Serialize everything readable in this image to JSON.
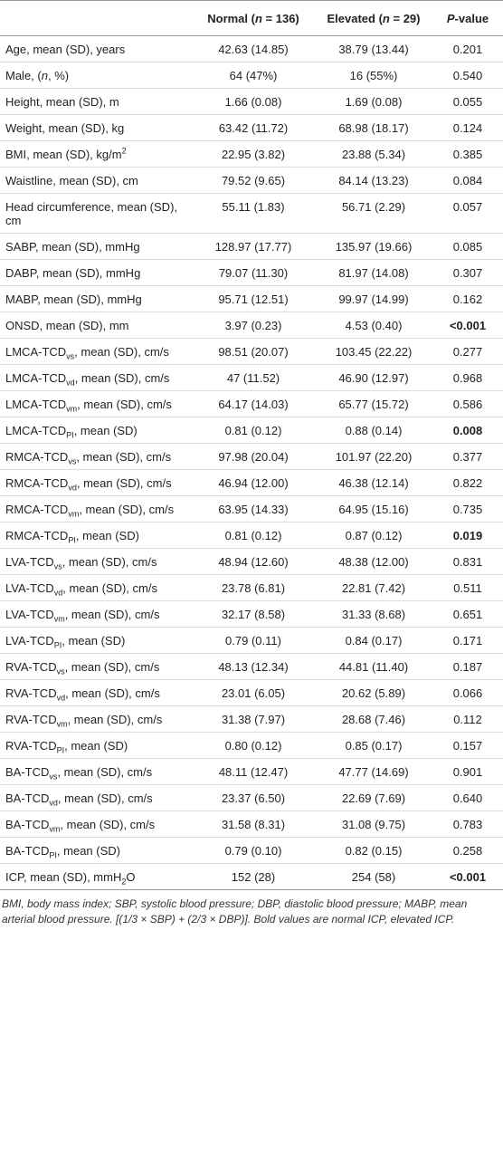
{
  "table": {
    "header": [
      [
        "",
        "Normal (",
        {
          "i": "n"
        },
        " = 136)"
      ],
      [
        "Elevated (",
        {
          "i": "n"
        },
        " = 29)"
      ],
      [
        {
          "i": "P"
        },
        "-value"
      ]
    ],
    "rows": [
      {
        "label": [
          "Age, mean (SD), years"
        ],
        "normal": "42.63 (14.85)",
        "elevated": "38.79 (13.44)",
        "p": "0.201"
      },
      {
        "label": [
          "Male, (",
          {
            "i": "n"
          },
          ", %)"
        ],
        "normal": "64 (47%)",
        "elevated": "16 (55%)",
        "p": "0.540"
      },
      {
        "label": [
          "Height, mean (SD), m"
        ],
        "normal": "1.66 (0.08)",
        "elevated": "1.69 (0.08)",
        "p": "0.055"
      },
      {
        "label": [
          "Weight, mean (SD), kg"
        ],
        "normal": "63.42 (11.72)",
        "elevated": "68.98 (18.17)",
        "p": "0.124"
      },
      {
        "label": [
          "BMI, mean (SD), kg/m",
          {
            "sup": "2"
          }
        ],
        "normal": "22.95 (3.82)",
        "elevated": "23.88 (5.34)",
        "p": "0.385"
      },
      {
        "label": [
          "Waistline, mean (SD), cm"
        ],
        "normal": "79.52 (9.65)",
        "elevated": "84.14 (13.23)",
        "p": "0.084"
      },
      {
        "label": [
          "Head circumference, mean (SD), cm"
        ],
        "normal": "55.11 (1.83)",
        "elevated": "56.71 (2.29)",
        "p": "0.057"
      },
      {
        "label": [
          "SABP, mean (SD), mmHg"
        ],
        "normal": "128.97 (17.77)",
        "elevated": "135.97 (19.66)",
        "p": "0.085"
      },
      {
        "label": [
          "DABP, mean (SD), mmHg"
        ],
        "normal": "79.07 (11.30)",
        "elevated": "81.97 (14.08)",
        "p": "0.307"
      },
      {
        "label": [
          "MABP, mean (SD), mmHg"
        ],
        "normal": "95.71 (12.51)",
        "elevated": "99.97 (14.99)",
        "p": "0.162"
      },
      {
        "label": [
          "ONSD, mean (SD), mm"
        ],
        "normal": "3.97 (0.23)",
        "elevated": "4.53 (0.40)",
        "p": "<0.001",
        "bold": true
      },
      {
        "label": [
          "LMCA-TCD",
          {
            "sub": "vs"
          },
          ", mean (SD), cm/s"
        ],
        "normal": "98.51 (20.07)",
        "elevated": "103.45 (22.22)",
        "p": "0.277"
      },
      {
        "label": [
          "LMCA-TCD",
          {
            "sub": "vd"
          },
          ", mean (SD), cm/s"
        ],
        "normal": "47 (11.52)",
        "elevated": "46.90 (12.97)",
        "p": "0.968"
      },
      {
        "label": [
          "LMCA-TCD",
          {
            "sub": "vm"
          },
          ", mean (SD), cm/s"
        ],
        "normal": "64.17 (14.03)",
        "elevated": "65.77 (15.72)",
        "p": "0.586"
      },
      {
        "label": [
          "LMCA-TCD",
          {
            "sub": "PI"
          },
          ", mean (SD)"
        ],
        "normal": "0.81 (0.12)",
        "elevated": "0.88 (0.14)",
        "p": "0.008",
        "bold": true
      },
      {
        "label": [
          "RMCA-TCD",
          {
            "sub": "vs"
          },
          ", mean (SD), cm/s"
        ],
        "normal": "97.98 (20.04)",
        "elevated": "101.97 (22.20)",
        "p": "0.377"
      },
      {
        "label": [
          "RMCA-TCD",
          {
            "sub": "vd"
          },
          ", mean (SD), cm/s"
        ],
        "normal": "46.94 (12.00)",
        "elevated": "46.38 (12.14)",
        "p": "0.822"
      },
      {
        "label": [
          "RMCA-TCD",
          {
            "sub": "vm"
          },
          ", mean (SD), cm/s"
        ],
        "normal": "63.95 (14.33)",
        "elevated": "64.95 (15.16)",
        "p": "0.735"
      },
      {
        "label": [
          "RMCA-TCD",
          {
            "sub": "PI"
          },
          ", mean (SD)"
        ],
        "normal": "0.81 (0.12)",
        "elevated": "0.87 (0.12)",
        "p": "0.019",
        "bold": true
      },
      {
        "label": [
          "LVA-TCD",
          {
            "sub": "vs"
          },
          ", mean (SD), cm/s"
        ],
        "normal": "48.94 (12.60)",
        "elevated": "48.38 (12.00)",
        "p": "0.831"
      },
      {
        "label": [
          "LVA-TCD",
          {
            "sub": "vd"
          },
          ", mean (SD), cm/s"
        ],
        "normal": "23.78 (6.81)",
        "elevated": "22.81 (7.42)",
        "p": "0.511"
      },
      {
        "label": [
          "LVA-TCD",
          {
            "sub": "vm"
          },
          ", mean (SD), cm/s"
        ],
        "normal": "32.17 (8.58)",
        "elevated": "31.33 (8.68)",
        "p": "0.651"
      },
      {
        "label": [
          "LVA-TCD",
          {
            "sub": "PI"
          },
          ", mean (SD)"
        ],
        "normal": "0.79 (0.11)",
        "elevated": "0.84 (0.17)",
        "p": "0.171"
      },
      {
        "label": [
          "RVA-TCD",
          {
            "sub": "vs"
          },
          ", mean (SD), cm/s"
        ],
        "normal": "48.13 (12.34)",
        "elevated": "44.81 (11.40)",
        "p": "0.187"
      },
      {
        "label": [
          "RVA-TCD",
          {
            "sub": "vd"
          },
          ", mean (SD), cm/s"
        ],
        "normal": "23.01 (6.05)",
        "elevated": "20.62 (5.89)",
        "p": "0.066"
      },
      {
        "label": [
          "RVA-TCD",
          {
            "sub": "vm"
          },
          ", mean (SD), cm/s"
        ],
        "normal": "31.38 (7.97)",
        "elevated": "28.68 (7.46)",
        "p": "0.112"
      },
      {
        "label": [
          "RVA-TCD",
          {
            "sub": "PI"
          },
          ", mean (SD)"
        ],
        "normal": "0.80 (0.12)",
        "elevated": "0.85 (0.17)",
        "p": "0.157"
      },
      {
        "label": [
          "BA-TCD",
          {
            "sub": "vs"
          },
          ", mean (SD), cm/s"
        ],
        "normal": "48.11 (12.47)",
        "elevated": "47.77 (14.69)",
        "p": "0.901"
      },
      {
        "label": [
          "BA-TCD",
          {
            "sub": "vd"
          },
          ", mean (SD), cm/s"
        ],
        "normal": "23.37 (6.50)",
        "elevated": "22.69 (7.69)",
        "p": "0.640"
      },
      {
        "label": [
          "BA-TCD",
          {
            "sub": "vm"
          },
          ", mean (SD), cm/s"
        ],
        "normal": "31.58 (8.31)",
        "elevated": "31.08 (9.75)",
        "p": "0.783"
      },
      {
        "label": [
          "BA-TCD",
          {
            "sub": "PI"
          },
          ", mean (SD)"
        ],
        "normal": "0.79 (0.10)",
        "elevated": "0.82 (0.15)",
        "p": "0.258"
      },
      {
        "label": [
          "ICP, mean (SD), mmH",
          {
            "sub": "2"
          },
          "O"
        ],
        "normal": "152 (28)",
        "elevated": "254 (58)",
        "p": "<0.001",
        "bold": true
      }
    ],
    "footnote": "BMI, body mass index; SBP, systolic blood pressure; DBP, diastolic blood pressure; MABP, mean arterial blood pressure. [(1/3 × SBP) + (2/3 × DBP)]. Bold values are normal ICP, elevated ICP."
  }
}
